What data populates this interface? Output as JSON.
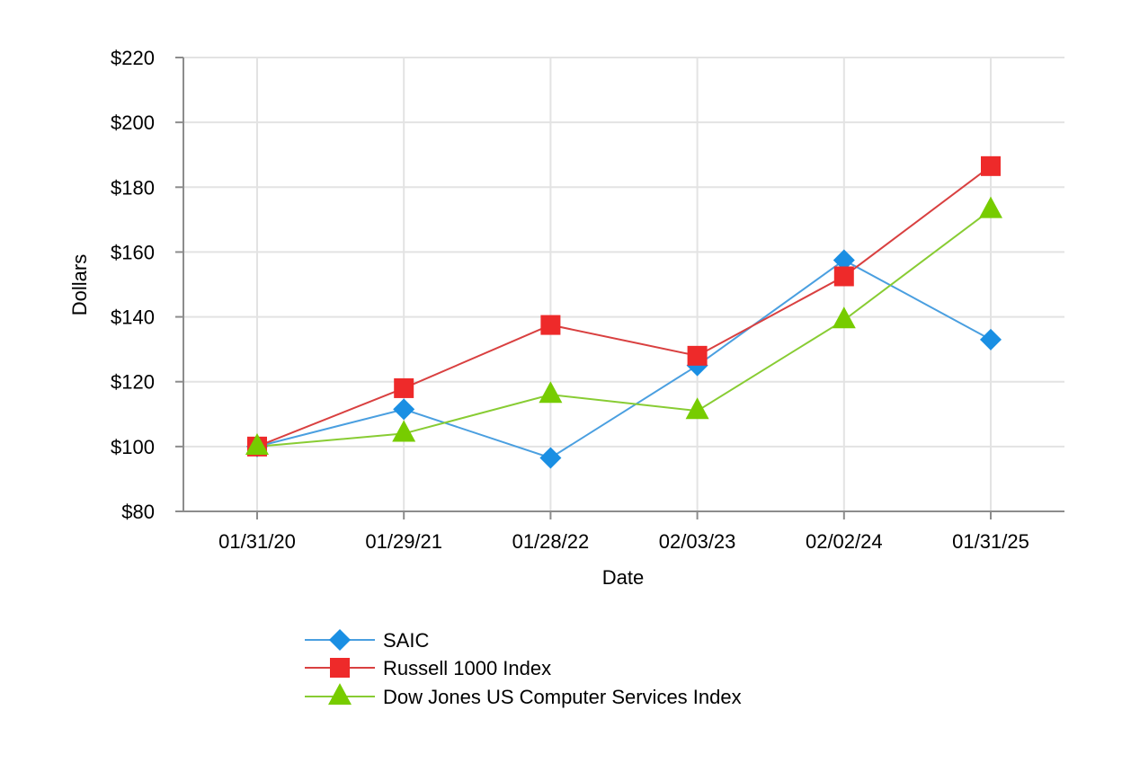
{
  "chart_data": {
    "type": "line",
    "title": "",
    "xlabel": "Date",
    "ylabel": "Dollars",
    "categories": [
      "01/31/20",
      "01/29/21",
      "01/28/22",
      "02/03/23",
      "02/02/24",
      "01/31/25"
    ],
    "ylim": [
      80,
      220
    ],
    "yticks": [
      80,
      100,
      120,
      140,
      160,
      180,
      200,
      220
    ],
    "ytick_labels": [
      "$80",
      "$100",
      "$120",
      "$140",
      "$160",
      "$180",
      "$200",
      "$220"
    ],
    "grid": true,
    "legend_position": "bottom",
    "series": [
      {
        "name": "SAIC",
        "marker": "diamond",
        "color": "#1a8fe3",
        "line_color": "#4a9fe0",
        "values": [
          100,
          111.5,
          96.5,
          125,
          157.5,
          133
        ]
      },
      {
        "name": "Russell 1000 Index",
        "marker": "square",
        "color": "#ee2a2a",
        "line_color": "#d94040",
        "values": [
          100,
          118,
          137.5,
          128,
          152.5,
          186.5
        ]
      },
      {
        "name": "Dow Jones US Computer Services Index",
        "marker": "triangle",
        "color": "#77cc00",
        "line_color": "#88cc33",
        "values": [
          100,
          104,
          116,
          111,
          139,
          173
        ]
      }
    ]
  }
}
